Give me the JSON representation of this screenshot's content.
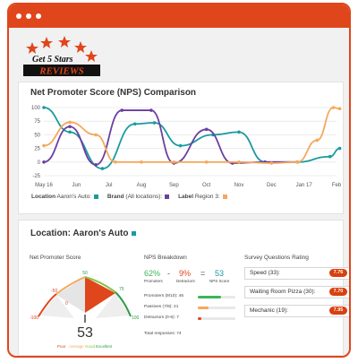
{
  "logo": {
    "line1": "Get 5 Stars",
    "line2": "REVIEWS"
  },
  "nps_comparison": {
    "title": "Net Promoter Score (NPS) Comparison",
    "legend": [
      {
        "label": "Location",
        "value": "Aaron's Auto:",
        "color": "#1a9aa0"
      },
      {
        "label": "Brand",
        "value": "(All locations):",
        "color": "#6b3fa0"
      },
      {
        "label": "Label",
        "value": "Region 3:",
        "color": "#f5a85c"
      }
    ]
  },
  "chart_data": {
    "type": "line",
    "title": "Net Promoter Score (NPS) Comparison",
    "x": [
      "May 16",
      "Jun",
      "Jul",
      "Aug",
      "Sep",
      "Oct",
      "Nov",
      "Dec",
      "Jan 17",
      "Feb"
    ],
    "ylim": [
      -25,
      100
    ],
    "yticks": [
      100,
      75,
      50,
      25,
      0,
      -25
    ],
    "grid": true,
    "legend_position": "bottom-left",
    "series": [
      {
        "name": "Aaron's Auto",
        "color": "#1a9aa0",
        "points": [
          [
            0,
            100
          ],
          [
            0.8,
            55
          ],
          [
            1.8,
            -12
          ],
          [
            2.8,
            70
          ],
          [
            3.4,
            72
          ],
          [
            4.2,
            30
          ],
          [
            5.2,
            50
          ],
          [
            6.0,
            55
          ],
          [
            6.8,
            0
          ],
          [
            7.8,
            0
          ],
          [
            8.8,
            10
          ],
          [
            9.1,
            25
          ]
        ]
      },
      {
        "name": "All locations",
        "color": "#6b3fa0",
        "points": [
          [
            0,
            0
          ],
          [
            0.8,
            65
          ],
          [
            1.6,
            -5
          ],
          [
            2.4,
            95
          ],
          [
            3.3,
            95
          ],
          [
            4.0,
            -2
          ],
          [
            5.0,
            60
          ],
          [
            5.8,
            -2
          ],
          [
            6.8,
            0
          ],
          [
            7.8,
            0
          ]
        ]
      },
      {
        "name": "Region 3",
        "color": "#f5a85c",
        "points": [
          [
            0,
            30
          ],
          [
            0.8,
            73
          ],
          [
            1.6,
            50
          ],
          [
            2.2,
            0
          ],
          [
            3.0,
            0
          ],
          [
            4.0,
            0
          ],
          [
            5.0,
            0
          ],
          [
            6.0,
            0
          ],
          [
            7.0,
            -2
          ],
          [
            7.8,
            0
          ],
          [
            8.4,
            40
          ],
          [
            8.9,
            100
          ],
          [
            9.1,
            98
          ]
        ]
      }
    ]
  },
  "location": {
    "label": "Location:",
    "name": "Aaron's Auto",
    "color": "#1a9aa0"
  },
  "gauge": {
    "title": "Net Promoter Score",
    "score": "53",
    "ticks": {
      "top": "50",
      "upper_right": "75",
      "right": "100",
      "upper_left": "-50",
      "left": "-100",
      "center_left": "0"
    },
    "legend": [
      {
        "label": "Poor",
        "color": "#e0461c"
      },
      {
        "label": "Average",
        "color": "#f5a85c"
      },
      {
        "label": "Good",
        "color": "#8bc34a"
      },
      {
        "label": "Excellent",
        "color": "#2e9c4a"
      }
    ]
  },
  "nps_breakdown": {
    "title": "NPS Breakdown",
    "promoters_pct": "62%",
    "minus": "-",
    "detractors_pct": "9%",
    "equals": "=",
    "nps": "53",
    "promoters_label": "Promoters",
    "detractors_label": "Detractors",
    "nps_label": "NPS Score",
    "rows": [
      {
        "label": "Promoters (9/10): 46",
        "fraction": 0.62,
        "color": "#3bb55a"
      },
      {
        "label": "Passives (7/8): 21",
        "fraction": 0.28,
        "color": "#f5a85c"
      },
      {
        "label": "Detractors (0-6): 7",
        "fraction": 0.09,
        "color": "#e0461c"
      }
    ],
    "total": "Total responses: 74"
  },
  "survey": {
    "title": "Survey Questions Rating",
    "rows": [
      {
        "label": "Speed (33):",
        "value": "7.76"
      },
      {
        "label": "Waiting Room Pizza (30):",
        "value": "7.70"
      },
      {
        "label": "Mechanic (19):",
        "value": "7.95"
      }
    ]
  },
  "colors": {
    "accent": "#e0461c",
    "teal": "#1a9aa0",
    "purple": "#6b3fa0",
    "orange": "#f5a85c",
    "green": "#3bb55a"
  }
}
